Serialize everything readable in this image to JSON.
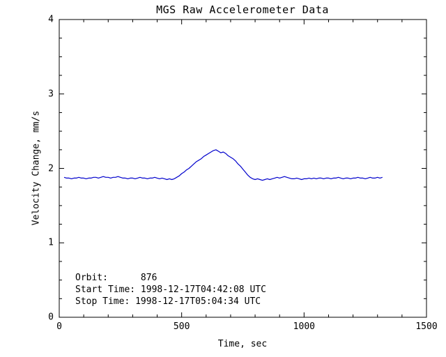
{
  "chart_data": {
    "type": "line",
    "title": "MGS Raw Accelerometer Data",
    "xlabel": "Time, sec",
    "ylabel": "Velocity Change, mm/s",
    "xlim": [
      0,
      1500
    ],
    "ylim": [
      0,
      4
    ],
    "xticks": [
      0,
      500,
      1000,
      1500
    ],
    "yticks": [
      0,
      1,
      2,
      3,
      4
    ],
    "x_minor_interval": 100,
    "y_minor_interval": 0.25,
    "grid": false,
    "legend": "none",
    "line_color": "#0000cc",
    "axis_color": "#000000",
    "background_color": "#ffffff",
    "annotations": [
      "Orbit:      876",
      "Start Time: 1998-12-17T04:42:08 UTC",
      "Stop Time: 1998-12-17T05:04:34 UTC"
    ],
    "x": [
      20,
      30,
      40,
      50,
      60,
      70,
      80,
      90,
      100,
      110,
      120,
      130,
      140,
      150,
      160,
      170,
      180,
      190,
      200,
      210,
      220,
      230,
      240,
      250,
      260,
      270,
      280,
      290,
      300,
      310,
      320,
      330,
      340,
      350,
      360,
      370,
      380,
      390,
      400,
      410,
      420,
      430,
      440,
      450,
      460,
      470,
      480,
      490,
      500,
      510,
      520,
      530,
      540,
      550,
      560,
      570,
      580,
      590,
      600,
      610,
      620,
      630,
      640,
      650,
      660,
      670,
      680,
      690,
      700,
      710,
      720,
      730,
      740,
      750,
      760,
      770,
      780,
      790,
      800,
      810,
      820,
      830,
      840,
      850,
      860,
      870,
      880,
      890,
      900,
      910,
      920,
      930,
      940,
      950,
      960,
      970,
      980,
      990,
      1000,
      1010,
      1020,
      1030,
      1040,
      1050,
      1060,
      1070,
      1080,
      1090,
      1100,
      1110,
      1120,
      1130,
      1140,
      1150,
      1160,
      1170,
      1180,
      1190,
      1200,
      1210,
      1220,
      1230,
      1240,
      1250,
      1260,
      1270,
      1280,
      1290,
      1300,
      1310,
      1320
    ],
    "y": [
      1.88,
      1.87,
      1.87,
      1.86,
      1.87,
      1.87,
      1.88,
      1.87,
      1.87,
      1.86,
      1.87,
      1.87,
      1.88,
      1.88,
      1.87,
      1.88,
      1.89,
      1.88,
      1.88,
      1.87,
      1.88,
      1.88,
      1.89,
      1.88,
      1.87,
      1.87,
      1.86,
      1.87,
      1.87,
      1.86,
      1.87,
      1.88,
      1.87,
      1.87,
      1.86,
      1.87,
      1.87,
      1.88,
      1.87,
      1.86,
      1.87,
      1.86,
      1.85,
      1.86,
      1.85,
      1.86,
      1.88,
      1.9,
      1.93,
      1.95,
      1.98,
      2.0,
      2.03,
      2.06,
      2.09,
      2.11,
      2.13,
      2.16,
      2.18,
      2.2,
      2.22,
      2.24,
      2.25,
      2.23,
      2.21,
      2.22,
      2.2,
      2.17,
      2.15,
      2.13,
      2.1,
      2.06,
      2.03,
      1.99,
      1.95,
      1.91,
      1.88,
      1.86,
      1.85,
      1.86,
      1.85,
      1.84,
      1.85,
      1.86,
      1.85,
      1.86,
      1.87,
      1.88,
      1.87,
      1.88,
      1.89,
      1.88,
      1.87,
      1.86,
      1.86,
      1.87,
      1.86,
      1.85,
      1.86,
      1.86,
      1.87,
      1.86,
      1.87,
      1.86,
      1.87,
      1.87,
      1.86,
      1.87,
      1.87,
      1.86,
      1.87,
      1.87,
      1.88,
      1.87,
      1.86,
      1.87,
      1.87,
      1.86,
      1.87,
      1.87,
      1.88,
      1.87,
      1.87,
      1.86,
      1.87,
      1.88,
      1.87,
      1.87,
      1.88,
      1.87,
      1.88
    ]
  }
}
